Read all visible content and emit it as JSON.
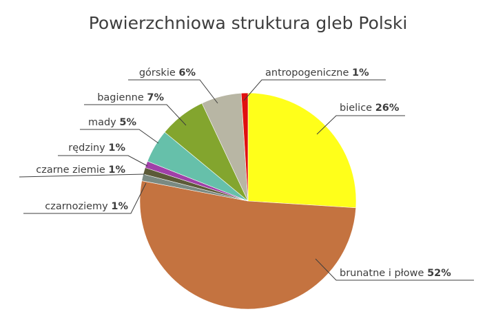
{
  "chart_data": {
    "type": "pie",
    "title": "Powierzchniowa struktura gleb Polski",
    "slices": [
      {
        "label": "bielice",
        "value": 26,
        "value_label": "26%",
        "color": "#ffff1a"
      },
      {
        "label": "brunatne i płowe",
        "value": 52,
        "value_label": "52%",
        "color": "#c47340"
      },
      {
        "label": "czarnoziemy",
        "value": 1,
        "value_label": "1%",
        "color": "#7a8a82"
      },
      {
        "label": "czarne ziemie",
        "value": 1,
        "value_label": "1%",
        "color": "#5c5a38"
      },
      {
        "label": "rędziny",
        "value": 1,
        "value_label": "1%",
        "color": "#a040a8"
      },
      {
        "label": "mady",
        "value": 5,
        "value_label": "5%",
        "color": "#66c0aa"
      },
      {
        "label": "bagienne",
        "value": 7,
        "value_label": "7%",
        "color": "#83a52e"
      },
      {
        "label": "górskie",
        "value": 6,
        "value_label": "6%",
        "color": "#b8b6a4"
      },
      {
        "label": "antropogeniczne",
        "value": 1,
        "value_label": "1%",
        "color": "#e00f0f"
      }
    ]
  }
}
